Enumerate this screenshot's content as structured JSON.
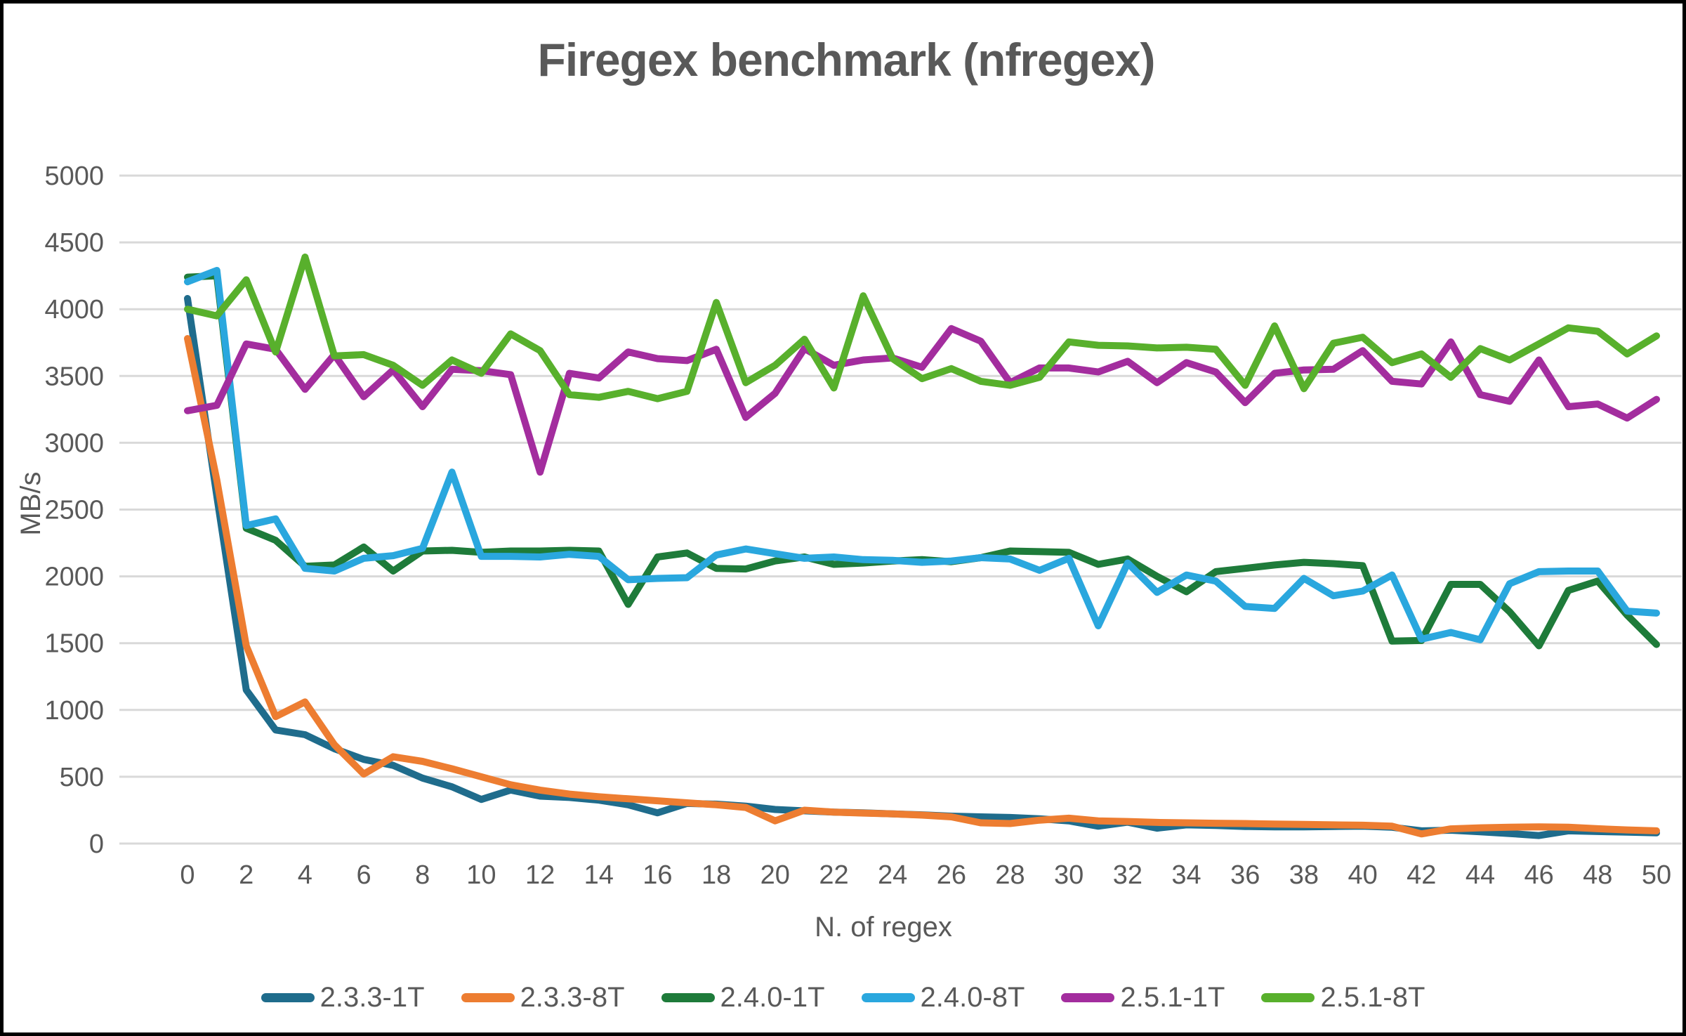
{
  "chart_data": {
    "type": "line",
    "title": "Firegex benchmark (nfregex)",
    "xlabel": "N. of regex",
    "ylabel": "MB/s",
    "ylim": [
      0,
      5000
    ],
    "y_tick_step": 500,
    "xlim": [
      0,
      50
    ],
    "x_tick_step": 2,
    "grid": "horizontal",
    "legend_position": "bottom",
    "x": [
      0,
      1,
      2,
      3,
      4,
      5,
      6,
      7,
      8,
      9,
      10,
      11,
      12,
      13,
      14,
      15,
      16,
      17,
      18,
      19,
      20,
      21,
      22,
      23,
      24,
      25,
      26,
      27,
      28,
      29,
      30,
      31,
      32,
      33,
      34,
      35,
      36,
      37,
      38,
      39,
      40,
      41,
      42,
      43,
      44,
      45,
      46,
      47,
      48,
      49,
      50
    ],
    "series": [
      {
        "name": "2.3.3-1T",
        "color": "#1F6C8C",
        "values": [
          4080,
          2600,
          1150,
          850,
          815,
          710,
          630,
          585,
          490,
          425,
          330,
          400,
          355,
          345,
          325,
          290,
          230,
          300,
          295,
          280,
          255,
          245,
          235,
          230,
          222,
          215,
          205,
          200,
          195,
          185,
          170,
          130,
          160,
          115,
          140,
          135,
          128,
          125,
          125,
          128,
          130,
          122,
          95,
          100,
          88,
          75,
          60,
          95,
          90,
          85,
          80
        ]
      },
      {
        "name": "2.3.3-8T",
        "color": "#ED7D31",
        "values": [
          3780,
          2720,
          1480,
          950,
          1060,
          740,
          520,
          650,
          615,
          560,
          500,
          440,
          400,
          370,
          350,
          335,
          320,
          305,
          290,
          270,
          170,
          250,
          235,
          228,
          222,
          213,
          200,
          155,
          150,
          175,
          190,
          170,
          165,
          158,
          155,
          152,
          150,
          146,
          143,
          140,
          137,
          130,
          72,
          110,
          118,
          122,
          125,
          122,
          111,
          102,
          95
        ]
      },
      {
        "name": "2.4.0-1T",
        "color": "#1E7B3A",
        "values": [
          4240,
          4250,
          2360,
          2270,
          2075,
          2085,
          2220,
          2040,
          2190,
          2195,
          2180,
          2190,
          2190,
          2195,
          2190,
          1790,
          2145,
          2175,
          2060,
          2055,
          2115,
          2145,
          2090,
          2100,
          2115,
          2125,
          2110,
          2140,
          2190,
          2185,
          2180,
          2090,
          2130,
          2000,
          1885,
          2035,
          2060,
          2085,
          2105,
          2095,
          2080,
          1515,
          1520,
          1940,
          1940,
          1735,
          1480,
          1895,
          1965,
          1710,
          1490
        ]
      },
      {
        "name": "2.4.0-8T",
        "color": "#2AA7DE",
        "values": [
          4205,
          4290,
          2380,
          2430,
          2060,
          2040,
          2135,
          2155,
          2210,
          2780,
          2150,
          2150,
          2145,
          2165,
          2150,
          1975,
          1985,
          1990,
          2160,
          2205,
          2170,
          2135,
          2145,
          2125,
          2120,
          2105,
          2115,
          2140,
          2130,
          2045,
          2135,
          1630,
          2100,
          1880,
          2010,
          1965,
          1775,
          1760,
          1985,
          1855,
          1890,
          2010,
          1530,
          1580,
          1525,
          1945,
          2035,
          2040,
          2040,
          1740,
          1725
        ]
      },
      {
        "name": "2.5.1-1T",
        "color": "#A32D9E",
        "values": [
          3240,
          3280,
          3740,
          3700,
          3400,
          3660,
          3345,
          3545,
          3270,
          3550,
          3540,
          3510,
          2780,
          3520,
          3485,
          3680,
          3630,
          3615,
          3700,
          3190,
          3370,
          3705,
          3580,
          3620,
          3635,
          3565,
          3855,
          3760,
          3450,
          3560,
          3560,
          3530,
          3610,
          3450,
          3600,
          3530,
          3300,
          3520,
          3545,
          3550,
          3690,
          3460,
          3440,
          3755,
          3360,
          3310,
          3620,
          3270,
          3290,
          3185,
          3325
        ]
      },
      {
        "name": "2.5.1-8T",
        "color": "#58B02C",
        "values": [
          4000,
          3950,
          4220,
          3680,
          4390,
          3650,
          3660,
          3580,
          3430,
          3620,
          3520,
          3815,
          3690,
          3360,
          3340,
          3385,
          3330,
          3385,
          4050,
          3450,
          3580,
          3775,
          3410,
          4100,
          3630,
          3480,
          3555,
          3460,
          3430,
          3490,
          3755,
          3730,
          3725,
          3710,
          3715,
          3700,
          3430,
          3875,
          3405,
          3745,
          3790,
          3600,
          3665,
          3490,
          3705,
          3620,
          3740,
          3860,
          3835,
          3665,
          3800
        ]
      }
    ],
    "colors": {
      "text": "#595959",
      "gridline": "#D9D9D9",
      "background": "#FFFFFF",
      "border": "#000000"
    }
  }
}
